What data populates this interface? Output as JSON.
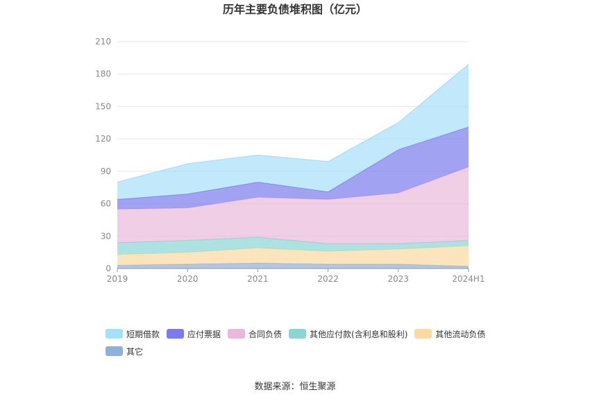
{
  "title": "历年主要负债堆积图（亿元）",
  "source": "数据来源：恒生聚源",
  "chart_data": {
    "type": "area",
    "stacked": true,
    "title": "历年主要负债堆积图（亿元）",
    "categories": [
      "2019",
      "2020",
      "2021",
      "2022",
      "2023",
      "2024H1"
    ],
    "ylim": [
      0,
      210
    ],
    "yticks": [
      0,
      30,
      60,
      90,
      120,
      150,
      180,
      210
    ],
    "grid": true,
    "legend_position": "bottom",
    "series": [
      {
        "name": "其它",
        "color": "#8fb0dc",
        "values": [
          3,
          4,
          5,
          4,
          4,
          2
        ]
      },
      {
        "name": "其他流动负债",
        "color": "#fbd9a0",
        "values": [
          10,
          11,
          14,
          12,
          14,
          19
        ]
      },
      {
        "name": "其他应付款(含利息和股利)",
        "color": "#8ad6d6",
        "values": [
          11,
          11,
          10,
          7,
          5,
          5
        ]
      },
      {
        "name": "合同负债",
        "color": "#e8b9dc",
        "values": [
          31,
          30,
          37,
          41,
          47,
          68
        ]
      },
      {
        "name": "应付票据",
        "color": "#7b7bee",
        "values": [
          9,
          13,
          14,
          7,
          40,
          37
        ]
      },
      {
        "name": "短期借款",
        "color": "#a6dffa",
        "values": [
          16,
          28,
          25,
          28,
          25,
          58
        ]
      }
    ],
    "legend_order": [
      "短期借款",
      "应付票据",
      "合同负债",
      "其他应付款(含利息和股利)",
      "其他流动负债",
      "其它"
    ]
  }
}
